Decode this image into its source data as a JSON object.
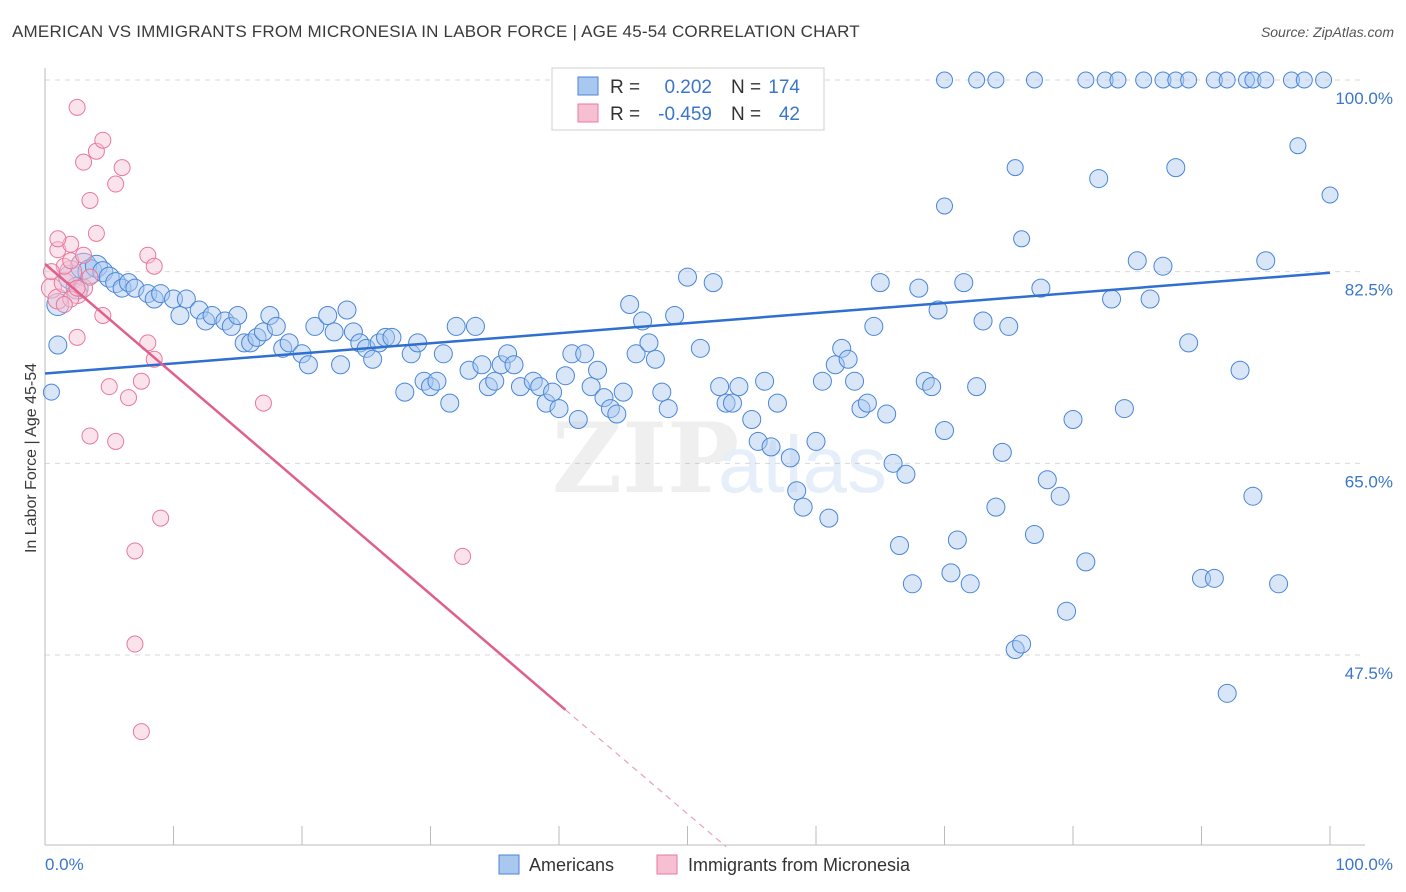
{
  "title": "AMERICAN VS IMMIGRANTS FROM MICRONESIA IN LABOR FORCE | AGE 45-54 CORRELATION CHART",
  "source": "Source: ZipAtlas.com",
  "watermark": {
    "zip": "ZIP",
    "atlas": "atlas"
  },
  "chart_data": {
    "type": "scatter",
    "title": "AMERICAN VS IMMIGRANTS FROM MICRONESIA IN LABOR FORCE | AGE 45-54 CORRELATION CHART",
    "ylabel": "In Labor Force | Age 45-54",
    "xlim": [
      0,
      100
    ],
    "ylim": [
      31,
      103
    ],
    "x_tick_labels": [
      "0.0%",
      "100.0%"
    ],
    "y_ticks": [
      47.5,
      65.0,
      82.5,
      100.0
    ],
    "y_tick_labels": [
      "47.5%",
      "65.0%",
      "82.5%",
      "100.0%"
    ],
    "grid": "dashed horizontal",
    "legend": {
      "placement": "top-center",
      "rows": [
        {
          "r_label": "R =",
          "r_value": "0.202",
          "n_label": "N =",
          "n_value": "174"
        },
        {
          "r_label": "R =",
          "r_value": "-0.459",
          "n_label": "N =",
          "n_value": "42"
        }
      ]
    },
    "colors": {
      "americans": "#4a86d8",
      "micronesia": "#e8799d",
      "axis_text": "#3a76c9"
    },
    "series": [
      {
        "name": "Americans",
        "trend": {
          "x": [
            0,
            100
          ],
          "y": [
            73.2,
            82.4
          ]
        },
        "points": [
          [
            1,
            79.5,
            22
          ],
          [
            1,
            75.8,
            18
          ],
          [
            0.5,
            71.5,
            16
          ],
          [
            2,
            82,
            24
          ],
          [
            2.5,
            81,
            22
          ],
          [
            3,
            83,
            26
          ],
          [
            3.5,
            82.5,
            24
          ],
          [
            4,
            83,
            22
          ],
          [
            4.5,
            82.5,
            20
          ],
          [
            5,
            82,
            20
          ],
          [
            5.5,
            81.5,
            20
          ],
          [
            6,
            81,
            18
          ],
          [
            6.5,
            81.5,
            18
          ],
          [
            7,
            81,
            18
          ],
          [
            8,
            80.5,
            18
          ],
          [
            8.5,
            80,
            18
          ],
          [
            9,
            80.5,
            18
          ],
          [
            10,
            80,
            18
          ],
          [
            10.5,
            78.5,
            18
          ],
          [
            11,
            80,
            18
          ],
          [
            12,
            79,
            18
          ],
          [
            12.5,
            78,
            18
          ],
          [
            13,
            78.5,
            18
          ],
          [
            14,
            78,
            18
          ],
          [
            14.5,
            77.5,
            18
          ],
          [
            15,
            78.5,
            18
          ],
          [
            15.5,
            76,
            18
          ],
          [
            16,
            76,
            18
          ],
          [
            16.5,
            76.5,
            18
          ],
          [
            17,
            77,
            18
          ],
          [
            17.5,
            78.5,
            18
          ],
          [
            18,
            77.5,
            18
          ],
          [
            18.5,
            75.5,
            18
          ],
          [
            19,
            76,
            18
          ],
          [
            20,
            75,
            18
          ],
          [
            20.5,
            74,
            18
          ],
          [
            21,
            77.5,
            18
          ],
          [
            22,
            78.5,
            18
          ],
          [
            22.5,
            77,
            18
          ],
          [
            23,
            74,
            18
          ],
          [
            23.5,
            79,
            18
          ],
          [
            24,
            77,
            18
          ],
          [
            24.5,
            76,
            18
          ],
          [
            25,
            75.5,
            18
          ],
          [
            25.5,
            74.5,
            18
          ],
          [
            26,
            76,
            18
          ],
          [
            26.5,
            76.5,
            18
          ],
          [
            27,
            76.5,
            18
          ],
          [
            28,
            71.5,
            18
          ],
          [
            28.5,
            75,
            18
          ],
          [
            29,
            76,
            18
          ],
          [
            29.5,
            72.5,
            18
          ],
          [
            30,
            72,
            18
          ],
          [
            30.5,
            72.5,
            18
          ],
          [
            31,
            75,
            18
          ],
          [
            31.5,
            70.5,
            18
          ],
          [
            32,
            77.5,
            18
          ],
          [
            33,
            73.5,
            18
          ],
          [
            33.5,
            77.5,
            18
          ],
          [
            34,
            74,
            18
          ],
          [
            34.5,
            72,
            18
          ],
          [
            35,
            72.5,
            18
          ],
          [
            35.5,
            74,
            18
          ],
          [
            36,
            75,
            18
          ],
          [
            36.5,
            74,
            18
          ],
          [
            37,
            72,
            18
          ],
          [
            38,
            72.5,
            18
          ],
          [
            38.5,
            72,
            18
          ],
          [
            39,
            70.5,
            18
          ],
          [
            39.5,
            71.5,
            18
          ],
          [
            40,
            70,
            18
          ],
          [
            40.5,
            73,
            18
          ],
          [
            41,
            75,
            18
          ],
          [
            41.5,
            69,
            18
          ],
          [
            42,
            75,
            18
          ],
          [
            42.5,
            72,
            18
          ],
          [
            43,
            73.5,
            18
          ],
          [
            43.5,
            71,
            18
          ],
          [
            44,
            70,
            18
          ],
          [
            44.5,
            69.5,
            18
          ],
          [
            45,
            71.5,
            18
          ],
          [
            45.5,
            79.5,
            18
          ],
          [
            46,
            75,
            18
          ],
          [
            46.5,
            78,
            18
          ],
          [
            47,
            76,
            18
          ],
          [
            47.5,
            74.5,
            18
          ],
          [
            48,
            71.5,
            18
          ],
          [
            48.5,
            70,
            18
          ],
          [
            49,
            78.5,
            18
          ],
          [
            50,
            82,
            18
          ],
          [
            51,
            75.5,
            18
          ],
          [
            52,
            81.5,
            18
          ],
          [
            52.5,
            72,
            18
          ],
          [
            53,
            70.5,
            18
          ],
          [
            53.5,
            70.5,
            18
          ],
          [
            54,
            72,
            18
          ],
          [
            55,
            69,
            18
          ],
          [
            55.5,
            67,
            18
          ],
          [
            56,
            72.5,
            18
          ],
          [
            56.5,
            66.5,
            18
          ],
          [
            57,
            70.5,
            18
          ],
          [
            58,
            65.5,
            18
          ],
          [
            58.5,
            62.5,
            18
          ],
          [
            59,
            61,
            18
          ],
          [
            60,
            67,
            18
          ],
          [
            60.5,
            72.5,
            18
          ],
          [
            61,
            60,
            18
          ],
          [
            61.5,
            74,
            18
          ],
          [
            62,
            75.5,
            18
          ],
          [
            62.5,
            74.5,
            18
          ],
          [
            63,
            72.5,
            18
          ],
          [
            63.5,
            70,
            18
          ],
          [
            64,
            70.5,
            18
          ],
          [
            64.5,
            77.5,
            18
          ],
          [
            65,
            81.5,
            18
          ],
          [
            65.5,
            69.5,
            18
          ],
          [
            66,
            65,
            18
          ],
          [
            66.5,
            57.5,
            18
          ],
          [
            67,
            64,
            18
          ],
          [
            67.5,
            54,
            18
          ],
          [
            68,
            81,
            18
          ],
          [
            68.5,
            72.5,
            18
          ],
          [
            69,
            72,
            18
          ],
          [
            69.5,
            79,
            18
          ],
          [
            70,
            68,
            18
          ],
          [
            70.5,
            55,
            18
          ],
          [
            71,
            58,
            18
          ],
          [
            71.5,
            81.5,
            18
          ],
          [
            72,
            54,
            18
          ],
          [
            72.5,
            72,
            18
          ],
          [
            73,
            78,
            18
          ],
          [
            74,
            61,
            18
          ],
          [
            74.5,
            66,
            18
          ],
          [
            75,
            77.5,
            18
          ],
          [
            75.5,
            48,
            18
          ],
          [
            76,
            48.5,
            18
          ],
          [
            77,
            58.5,
            18
          ],
          [
            77.5,
            81,
            18
          ],
          [
            78,
            63.5,
            18
          ],
          [
            79,
            62,
            18
          ],
          [
            79.5,
            51.5,
            18
          ],
          [
            80,
            69,
            18
          ],
          [
            81,
            56,
            18
          ],
          [
            82,
            91,
            18
          ],
          [
            83,
            80,
            18
          ],
          [
            84,
            70,
            18
          ],
          [
            85,
            83.5,
            18
          ],
          [
            86,
            80,
            18
          ],
          [
            87,
            83,
            18
          ],
          [
            88,
            92,
            18
          ],
          [
            89,
            76,
            18
          ],
          [
            90,
            54.5,
            18
          ],
          [
            91,
            54.5,
            18
          ],
          [
            92,
            44,
            18
          ],
          [
            93,
            73.5,
            18
          ],
          [
            94,
            62,
            18
          ],
          [
            95,
            83.5,
            18
          ],
          [
            96,
            54,
            18
          ],
          [
            70,
            100,
            16
          ],
          [
            72.5,
            100,
            16
          ],
          [
            74,
            100,
            16
          ],
          [
            77,
            100,
            16
          ],
          [
            81,
            100,
            16
          ],
          [
            82.5,
            100,
            16
          ],
          [
            83.5,
            100,
            16
          ],
          [
            85.5,
            100,
            16
          ],
          [
            87,
            100,
            16
          ],
          [
            88,
            100,
            16
          ],
          [
            89,
            100,
            16
          ],
          [
            91,
            100,
            16
          ],
          [
            92,
            100,
            16
          ],
          [
            93.5,
            100,
            16
          ],
          [
            94,
            100,
            16
          ],
          [
            95,
            100,
            16
          ],
          [
            97,
            100,
            16
          ],
          [
            98,
            100,
            16
          ],
          [
            99.5,
            100,
            16
          ],
          [
            70,
            88.5,
            16
          ],
          [
            75.5,
            92,
            16
          ],
          [
            97.5,
            94,
            16
          ],
          [
            100,
            89.5,
            16
          ],
          [
            76,
            85.5,
            16
          ]
        ]
      },
      {
        "name": "Immigrants from Micronesia",
        "trend": {
          "x": [
            0,
            40.5
          ],
          "y": [
            83.2,
            42.5
          ]
        },
        "trend_dashed": {
          "x": [
            40.5,
            53
          ],
          "y": [
            42.5,
            30
          ]
        },
        "points": [
          [
            0.5,
            81,
            20
          ],
          [
            1,
            80,
            20
          ],
          [
            1.5,
            81.5,
            20
          ],
          [
            2,
            82.5,
            22
          ],
          [
            2.5,
            80.5,
            20
          ],
          [
            3,
            81,
            18
          ],
          [
            1,
            84.5,
            16
          ],
          [
            1.5,
            83,
            16
          ],
          [
            2,
            85,
            16
          ],
          [
            2.5,
            97.5,
            16
          ],
          [
            3,
            92.5,
            16
          ],
          [
            4,
            93.5,
            16
          ],
          [
            4.5,
            94.5,
            16
          ],
          [
            3.5,
            89,
            16
          ],
          [
            4,
            86,
            16
          ],
          [
            5.5,
            90.5,
            16
          ],
          [
            6,
            92,
            16
          ],
          [
            8,
            84,
            16
          ],
          [
            8.5,
            83,
            16
          ],
          [
            2,
            80,
            16
          ],
          [
            2.5,
            76.5,
            16
          ],
          [
            4.5,
            78.5,
            16
          ],
          [
            5,
            72,
            16
          ],
          [
            6.5,
            71,
            16
          ],
          [
            7.5,
            72.5,
            16
          ],
          [
            8.5,
            74.5,
            16
          ],
          [
            8,
            76,
            16
          ],
          [
            3.5,
            67.5,
            16
          ],
          [
            5.5,
            67,
            16
          ],
          [
            9,
            60,
            16
          ],
          [
            7,
            57,
            16
          ],
          [
            7,
            48.5,
            16
          ],
          [
            7.5,
            40.5,
            16
          ],
          [
            17,
            70.5,
            16
          ],
          [
            32.5,
            56.5,
            16
          ],
          [
            1,
            85.5,
            16
          ],
          [
            2,
            83.5,
            16
          ],
          [
            3,
            84,
            16
          ],
          [
            0.5,
            82.5,
            16
          ],
          [
            1.5,
            79.5,
            16
          ],
          [
            2.5,
            81,
            16
          ],
          [
            3.5,
            82,
            16
          ]
        ]
      }
    ]
  },
  "bottom_legend": {
    "americans": "Americans",
    "micronesia": "Immigrants from Micronesia"
  }
}
